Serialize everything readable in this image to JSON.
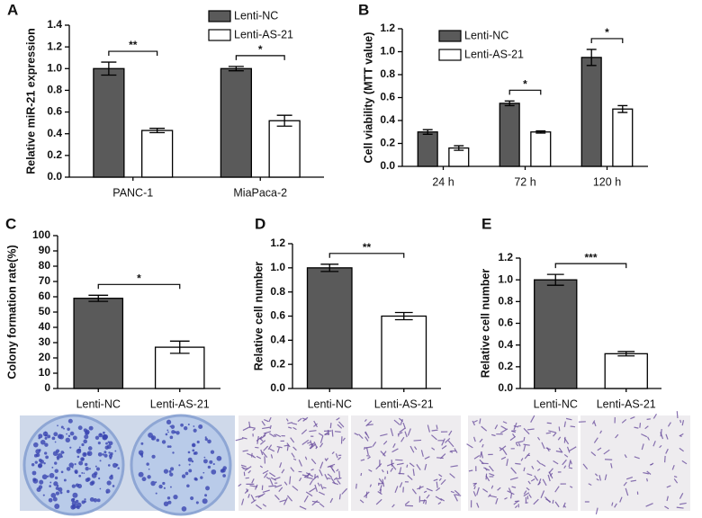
{
  "chart_data": [
    {
      "panel": "A",
      "type": "grouped-bar",
      "y_label": "Relative miR-21 expression",
      "categories": [
        "PANC-1",
        "MiaPaca-2"
      ],
      "series": [
        {
          "name": "Lenti-NC",
          "color": "#5a5a5a",
          "values": [
            1.0,
            1.0
          ],
          "errors": [
            0.06,
            0.02
          ]
        },
        {
          "name": "Lenti-AS-21",
          "color": "#ffffff",
          "values": [
            0.43,
            0.52
          ],
          "errors": [
            0.02,
            0.05
          ]
        }
      ],
      "significance": [
        "**",
        "*"
      ],
      "ylim": [
        0,
        1.4
      ],
      "yticks": [
        {
          "value": 0,
          "label": "0.0"
        },
        0.2,
        0.4,
        0.6,
        0.8,
        {
          "value": 1,
          "label": "1.0"
        },
        1.2,
        1.4
      ]
    },
    {
      "panel": "B",
      "type": "grouped-bar",
      "y_label": "Cell viability (MTT value)",
      "categories": [
        "24 h",
        "72 h",
        "120 h"
      ],
      "series": [
        {
          "name": "Lenti-NC",
          "color": "#5a5a5a",
          "values": [
            0.3,
            0.55,
            0.95
          ],
          "errors": [
            0.02,
            0.02,
            0.07
          ]
        },
        {
          "name": "Lenti-AS-21",
          "color": "#ffffff",
          "values": [
            0.16,
            0.3,
            0.5
          ],
          "errors": [
            0.02,
            0.01,
            0.03
          ]
        }
      ],
      "significance": [
        null,
        "*",
        "*"
      ],
      "ylim": [
        0,
        1.2
      ],
      "yticks": [
        {
          "value": 0,
          "label": "0.0"
        },
        0.2,
        0.4,
        0.6,
        0.8,
        {
          "value": 1,
          "label": "1.0"
        },
        1.2
      ]
    },
    {
      "panel": "C",
      "type": "bar",
      "y_label": "Colony formation rate(%)",
      "categories": [
        "Lenti-NC",
        "Lenti-AS-21"
      ],
      "colors": [
        "#5a5a5a",
        "#ffffff"
      ],
      "values": [
        59,
        27
      ],
      "errors": [
        2,
        4
      ],
      "significance": "*",
      "ylim": [
        0,
        100
      ],
      "yticks": [
        0,
        10,
        20,
        30,
        40,
        50,
        60,
        70,
        80,
        90,
        100
      ]
    },
    {
      "panel": "D",
      "type": "bar",
      "y_label": "Relative cell number",
      "categories": [
        "Lenti-NC",
        "Lenti-AS-21"
      ],
      "colors": [
        "#5a5a5a",
        "#ffffff"
      ],
      "values": [
        1.0,
        0.6
      ],
      "errors": [
        0.03,
        0.03
      ],
      "significance": "**",
      "ylim": [
        0,
        1.2
      ],
      "yticks": [
        {
          "value": 0,
          "label": "0.0"
        },
        0.2,
        0.4,
        0.6,
        0.8,
        {
          "value": 1,
          "label": "1.0"
        },
        1.2
      ]
    },
    {
      "panel": "E",
      "type": "bar",
      "y_label": "Relative cell number",
      "categories": [
        "Lenti-NC",
        "Lenti-AS-21"
      ],
      "colors": [
        "#5a5a5a",
        "#ffffff"
      ],
      "values": [
        1.0,
        0.32
      ],
      "errors": [
        0.05,
        0.02
      ],
      "significance": "***",
      "ylim": [
        0,
        1.2
      ],
      "yticks": [
        {
          "value": 0,
          "label": "0.0"
        },
        0.2,
        0.4,
        0.6,
        0.8,
        {
          "value": 1,
          "label": "1.0"
        },
        1.2
      ]
    }
  ]
}
